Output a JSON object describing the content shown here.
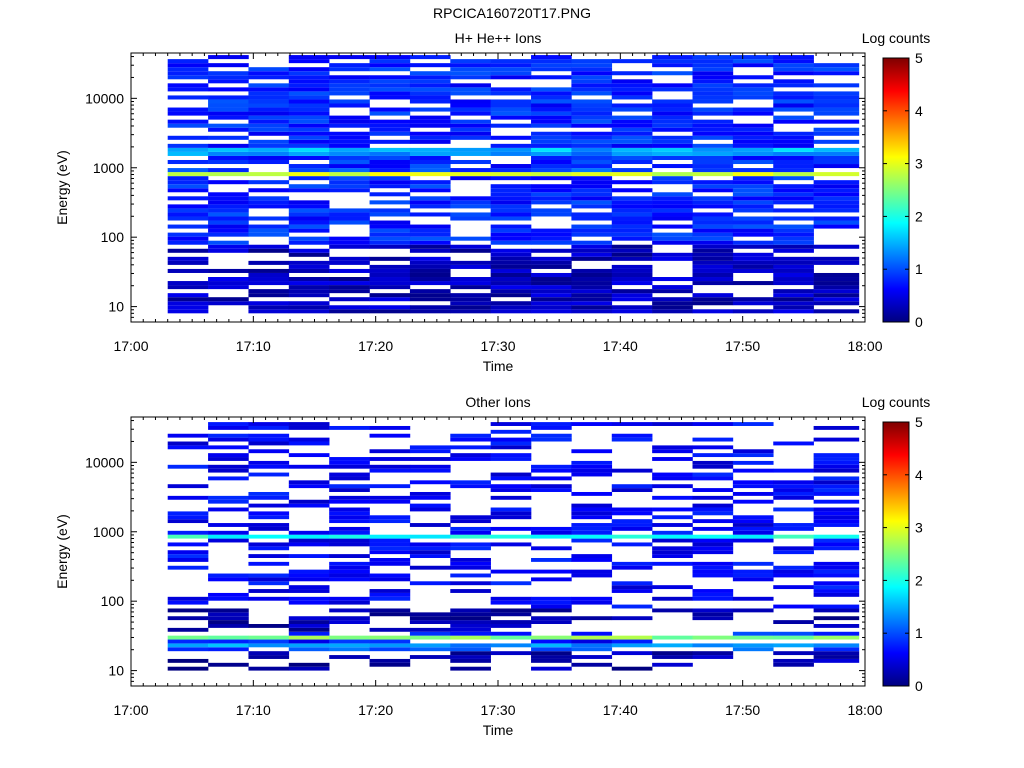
{
  "figure_title": "RPCICA160720T17.PNG",
  "colormap": [
    "#00007f",
    "#0000ff",
    "#007fff",
    "#00ffff",
    "#7fff7f",
    "#ffff00",
    "#ff7f00",
    "#ff0000",
    "#7f0000"
  ],
  "chart_data": [
    {
      "type": "heatmap",
      "title": "H+ He++ Ions",
      "xlabel": "Time",
      "ylabel": "Energy (eV)",
      "x_ticks": [
        "17:00",
        "17:10",
        "17:20",
        "17:30",
        "17:40",
        "17:50",
        "18:00"
      ],
      "x_range_minutes": [
        0,
        60
      ],
      "y_ticks": [
        "10",
        "100",
        "1000",
        "10000"
      ],
      "y_scale": "log",
      "y_range": [
        6,
        45000
      ],
      "time_bins_minutes": [
        3,
        6.3,
        9.6,
        12.9,
        16.2,
        19.5,
        22.8,
        26.1,
        29.4,
        32.7,
        36,
        39.3,
        42.6,
        45.9,
        49.2,
        52.5,
        55.8,
        59.5
      ],
      "colorbar": {
        "label": "Log counts",
        "ticks": [
          "0",
          "1",
          "2",
          "3",
          "4",
          "5"
        ],
        "range": [
          0,
          5
        ]
      },
      "profile": {
        "e_min": 8,
        "e_max": 42000,
        "peak_energies": [
          820,
          1700
        ],
        "peak_values": [
          3.0,
          2.0
        ],
        "background": 0.8,
        "low_energy_background": 0.3,
        "fill_probability": 0.72,
        "seed": 7
      }
    },
    {
      "type": "heatmap",
      "title": "Other Ions",
      "xlabel": "Time",
      "ylabel": "Energy (eV)",
      "x_ticks": [
        "17:00",
        "17:10",
        "17:20",
        "17:30",
        "17:40",
        "17:50",
        "18:00"
      ],
      "x_range_minutes": [
        0,
        60
      ],
      "y_ticks": [
        "10",
        "100",
        "1000",
        "10000"
      ],
      "y_scale": "log",
      "y_range": [
        6,
        45000
      ],
      "time_bins_minutes": [
        3,
        6.3,
        9.6,
        12.9,
        16.2,
        19.5,
        22.8,
        26.1,
        29.4,
        32.7,
        36,
        39.3,
        42.6,
        45.9,
        49.2,
        52.5,
        55.8,
        59.5
      ],
      "colorbar": {
        "label": "Log counts",
        "ticks": [
          "0",
          "1",
          "2",
          "3",
          "4",
          "5"
        ],
        "range": [
          0,
          5
        ]
      },
      "profile": {
        "e_min": 10,
        "e_max": 38000,
        "peak_energies": [
          850,
          30,
          22
        ],
        "peak_values": [
          2.0,
          2.6,
          1.6
        ],
        "background": 0.6,
        "low_energy_background": 0.2,
        "fill_probability": 0.45,
        "seed": 19
      }
    }
  ]
}
